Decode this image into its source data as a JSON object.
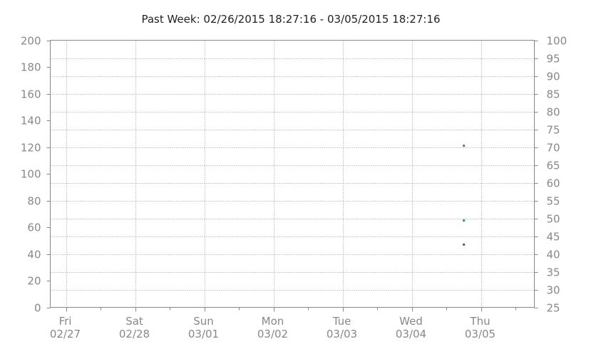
{
  "chart_data": {
    "type": "scatter",
    "title": "Past Week: 02/26/2015 18:27:16 - 03/05/2015 18:27:16",
    "x_range": [
      "2015-02-26 18:27:16",
      "2015-03-05 18:27:16"
    ],
    "x_ticks": [
      {
        "date": "2015-02-27",
        "day": "Fri",
        "md": "02/27"
      },
      {
        "date": "2015-02-28",
        "day": "Sat",
        "md": "02/28"
      },
      {
        "date": "2015-03-01",
        "day": "Sun",
        "md": "03/01"
      },
      {
        "date": "2015-03-02",
        "day": "Mon",
        "md": "03/02"
      },
      {
        "date": "2015-03-03",
        "day": "Tue",
        "md": "03/03"
      },
      {
        "date": "2015-03-04",
        "day": "Wed",
        "md": "03/04"
      },
      {
        "date": "2015-03-05",
        "day": "Thu",
        "md": "03/05"
      }
    ],
    "y_left": {
      "min": 0,
      "max": 200,
      "ticks": [
        0,
        20,
        40,
        60,
        80,
        100,
        120,
        140,
        160,
        180,
        200
      ]
    },
    "y_right": {
      "min": 25,
      "max": 100,
      "ticks": [
        25,
        30,
        35,
        40,
        45,
        50,
        55,
        60,
        65,
        70,
        75,
        80,
        85,
        90,
        95,
        100
      ]
    },
    "grid": true,
    "series": [
      {
        "color": "#dd4422",
        "axis": "left",
        "points": [
          {
            "x": "2015-03-04 18:00",
            "y": 121
          }
        ]
      },
      {
        "color": "#229977",
        "axis": "left",
        "points": [
          {
            "x": "2015-03-04 18:00",
            "y": 65
          }
        ]
      },
      {
        "color": "#2266aa",
        "axis": "left",
        "points": [
          {
            "x": "2015-03-04 18:00",
            "y": 47
          }
        ]
      }
    ]
  }
}
